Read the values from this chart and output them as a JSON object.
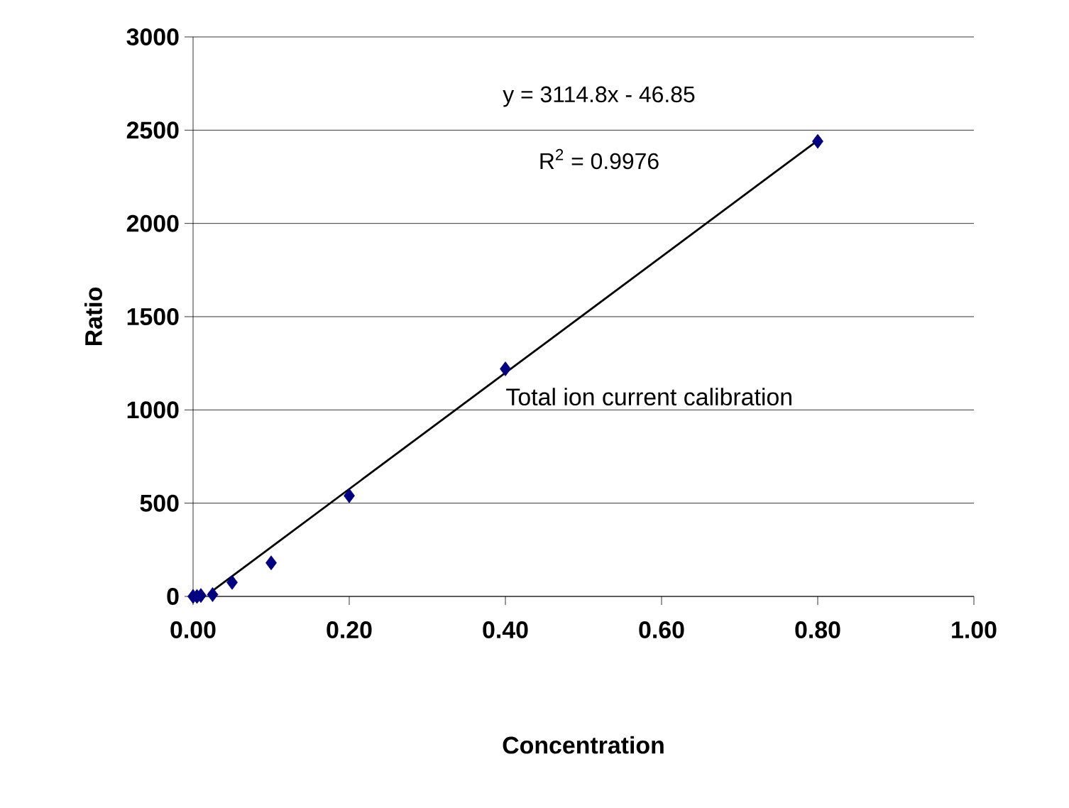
{
  "chart_data": {
    "type": "scatter",
    "xlabel": "Concentration",
    "ylabel": "Ratio",
    "xlim": [
      0,
      1
    ],
    "ylim": [
      0,
      3000
    ],
    "xticks": [
      {
        "value": 0,
        "label": "0.00"
      },
      {
        "value": 0.2,
        "label": "0.20"
      },
      {
        "value": 0.4,
        "label": "0.40"
      },
      {
        "value": 0.6,
        "label": "0.60"
      },
      {
        "value": 0.8,
        "label": "0.80"
      },
      {
        "value": 1,
        "label": "1.00"
      }
    ],
    "yticks": [
      0,
      500,
      1000,
      1500,
      2000,
      2500,
      3000
    ],
    "grid": "y",
    "series": [
      {
        "type": "scatter",
        "color": "#000080",
        "marker": "diamond",
        "x": [
          0,
          0.005,
          0.01,
          0.025,
          0.05,
          0.1,
          0.2,
          0.4,
          0.8
        ],
        "values": [
          0,
          0,
          5,
          10,
          75,
          180,
          540,
          1220,
          2440
        ]
      },
      {
        "type": "line",
        "color": "#000000",
        "marker": "none",
        "line_style": "solid",
        "x": [
          0.02,
          0.8
        ],
        "values": [
          15,
          2445
        ]
      }
    ],
    "annotations": [
      "y = 3114.8x - 46.85",
      "R$^{2}$ = 0.9976",
      "Total ion current calibration"
    ]
  }
}
